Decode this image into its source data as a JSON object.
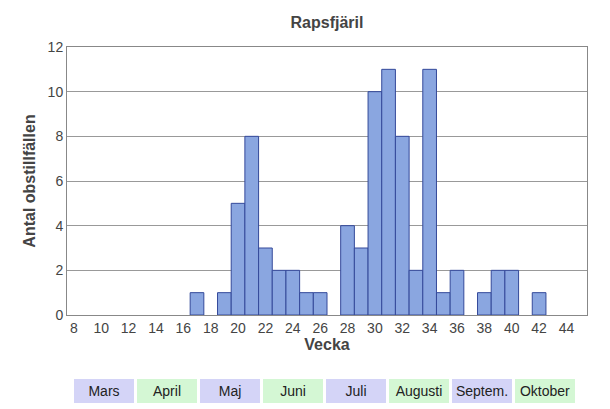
{
  "chart_data": {
    "type": "bar",
    "title": "Rapsfjäril",
    "x_label": "Vecka",
    "y_label": "Antal obstillfällen",
    "x": [
      17,
      19,
      20,
      21,
      22,
      23,
      24,
      25,
      26,
      28,
      29,
      30,
      31,
      32,
      33,
      34,
      35,
      36,
      38,
      39,
      40,
      42
    ],
    "values": [
      1,
      1,
      5,
      8,
      3,
      2,
      2,
      1,
      1,
      4,
      3,
      10,
      11,
      8,
      2,
      11,
      1,
      2,
      1,
      2,
      2,
      1
    ],
    "color": "#8aa6e0",
    "xlim": [
      7.5,
      45.5
    ],
    "xticks": [
      8,
      10,
      12,
      14,
      16,
      18,
      20,
      22,
      24,
      26,
      28,
      30,
      32,
      34,
      36,
      38,
      40,
      42,
      44
    ],
    "ylim": [
      0,
      12
    ],
    "yticks": [
      0,
      2,
      4,
      6,
      8,
      10,
      12
    ],
    "grid": true,
    "annotations": [
      {
        "text": "Mars",
        "color": "#d4d4f7"
      },
      {
        "text": "April",
        "color": "#d4f7d4"
      },
      {
        "text": "Maj",
        "color": "#d4d4f7"
      },
      {
        "text": "Juni",
        "color": "#d4f7d4"
      },
      {
        "text": "Juli",
        "color": "#d4d4f7"
      },
      {
        "text": "Augusti",
        "color": "#d4f7d4"
      },
      {
        "text": "Septem.",
        "color": "#d4d4f7"
      },
      {
        "text": "Oktober",
        "color": "#d4f7d4"
      }
    ]
  }
}
